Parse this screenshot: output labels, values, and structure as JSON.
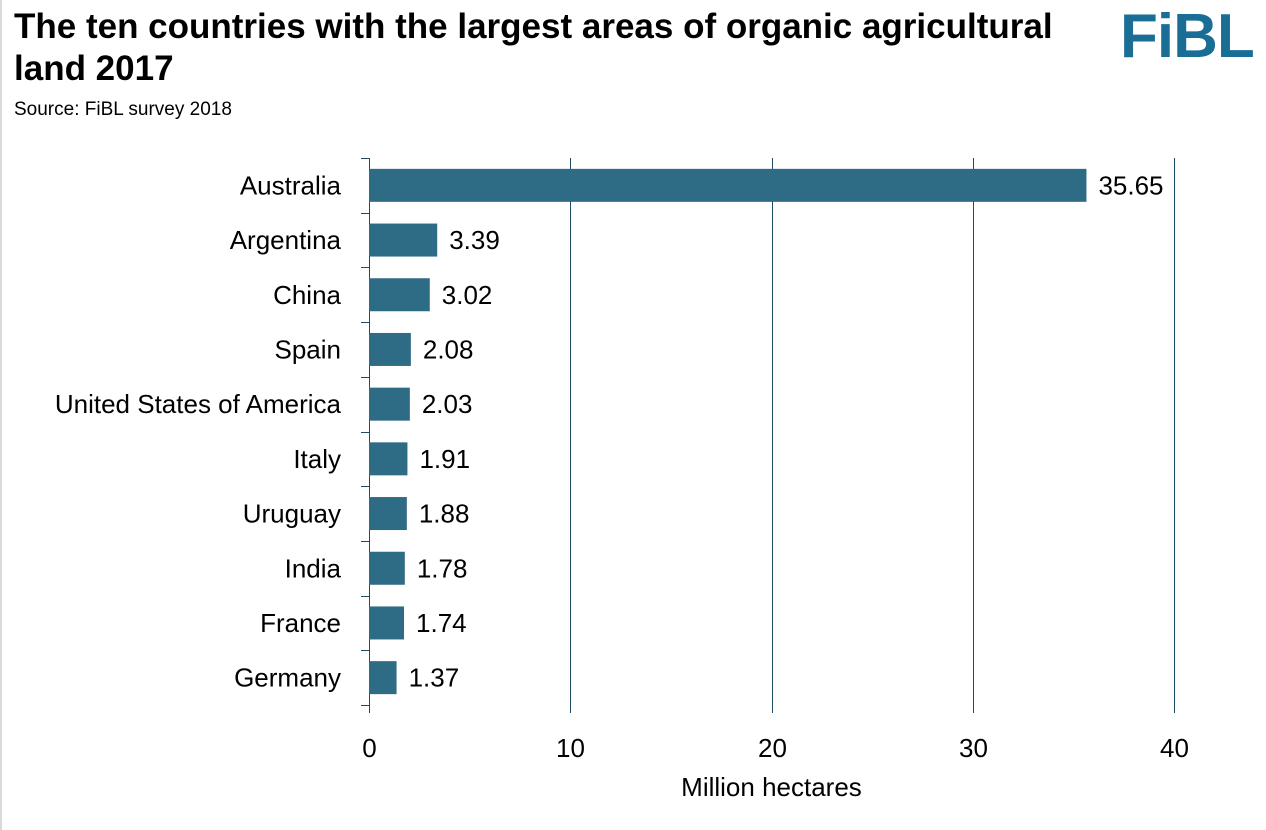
{
  "header": {
    "title": "The ten countries with the largest areas of organic agricultural land 2017",
    "subtitle": "Source: FiBL survey 2018",
    "logo_text": "FiBL"
  },
  "colors": {
    "bar": "#2e6b84",
    "grid": "#1f4e63",
    "logo": "#1a6e96"
  },
  "chart_data": {
    "type": "bar",
    "orientation": "horizontal",
    "categories": [
      "Australia",
      "Argentina",
      "China",
      "Spain",
      "United States of America",
      "Italy",
      "Uruguay",
      "India",
      "France",
      "Germany"
    ],
    "values": [
      35.65,
      3.39,
      3.02,
      2.08,
      2.03,
      1.91,
      1.88,
      1.78,
      1.74,
      1.37
    ],
    "value_labels": [
      "35.65",
      "3.39",
      "3.02",
      "2.08",
      "2.03",
      "1.91",
      "1.88",
      "1.78",
      "1.74",
      "1.37"
    ],
    "xlabel": "Million hectares",
    "ylabel": "",
    "xlim": [
      0,
      40
    ],
    "xticks": [
      0,
      10,
      20,
      30,
      40
    ],
    "xtick_labels": [
      "0",
      "10",
      "20",
      "30",
      "40"
    ],
    "grid": "vertical",
    "legend": "none"
  }
}
